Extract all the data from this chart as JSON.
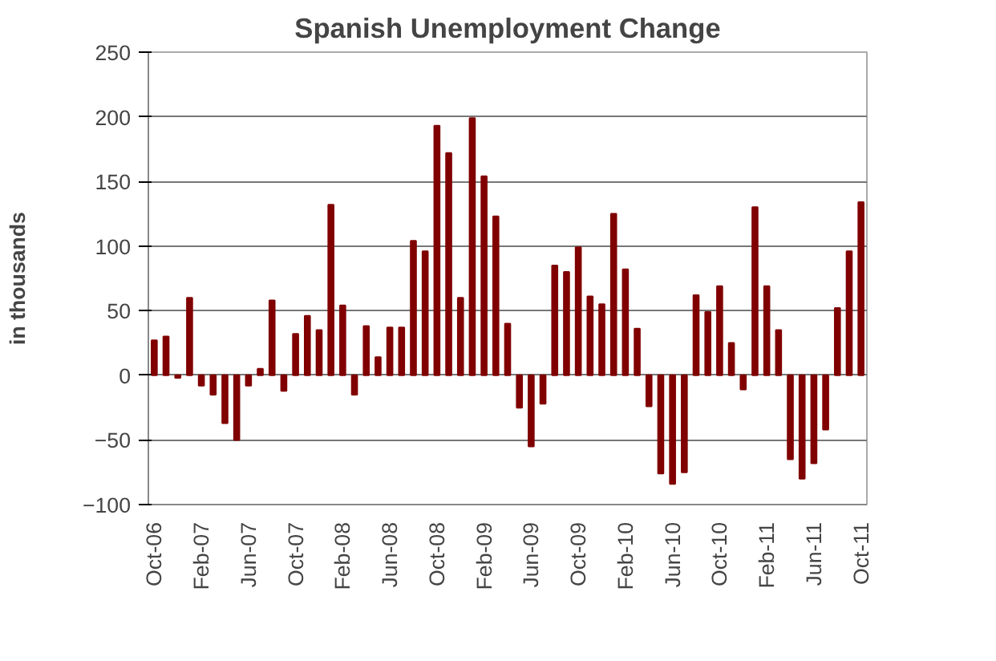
{
  "chart_data": {
    "type": "bar",
    "title": "Spanish Unemployment Change",
    "ylabel": "in thousands",
    "categories": [
      "Oct-06",
      null,
      null,
      null,
      "Feb-07",
      null,
      null,
      null,
      "Jun-07",
      null,
      null,
      null,
      "Oct-07",
      null,
      null,
      null,
      "Feb-08",
      null,
      null,
      null,
      "Jun-08",
      null,
      null,
      null,
      "Oct-08",
      null,
      null,
      null,
      "Feb-09",
      null,
      null,
      null,
      "Jun-09",
      null,
      null,
      null,
      "Oct-09",
      null,
      null,
      null,
      "Feb-10",
      null,
      null,
      null,
      "Jun-10",
      null,
      null,
      null,
      "Oct-10",
      null,
      null,
      null,
      "Feb-11",
      null,
      null,
      null,
      "Jun-11",
      null,
      null,
      null,
      "Oct-11"
    ],
    "values": [
      27,
      30,
      -2,
      60,
      -8,
      -15,
      -37,
      -50,
      -8,
      5,
      58,
      -12,
      32,
      46,
      35,
      132,
      54,
      -15,
      38,
      14,
      37,
      37,
      104,
      96,
      193,
      172,
      60,
      199,
      154,
      123,
      40,
      -25,
      -55,
      -22,
      85,
      80,
      99,
      61,
      55,
      125,
      82,
      36,
      -24,
      -76,
      -84,
      -75,
      62,
      49,
      69,
      25,
      -11,
      130,
      69,
      35,
      -65,
      -80,
      -68,
      -42,
      52,
      96,
      134
    ],
    "color": "#800000",
    "ylim": [
      -100,
      250
    ],
    "yticks": [
      -100,
      -50,
      0,
      50,
      100,
      150,
      200,
      250
    ],
    "grid": "y"
  }
}
